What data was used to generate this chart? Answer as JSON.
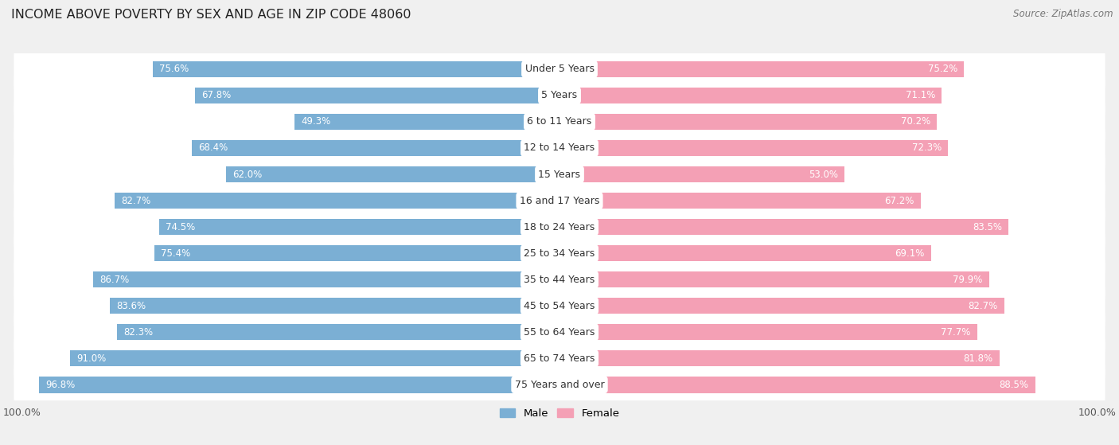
{
  "title": "INCOME ABOVE POVERTY BY SEX AND AGE IN ZIP CODE 48060",
  "source": "Source: ZipAtlas.com",
  "categories": [
    "Under 5 Years",
    "5 Years",
    "6 to 11 Years",
    "12 to 14 Years",
    "15 Years",
    "16 and 17 Years",
    "18 to 24 Years",
    "25 to 34 Years",
    "35 to 44 Years",
    "45 to 54 Years",
    "55 to 64 Years",
    "65 to 74 Years",
    "75 Years and over"
  ],
  "male": [
    75.6,
    67.8,
    49.3,
    68.4,
    62.0,
    82.7,
    74.5,
    75.4,
    86.7,
    83.6,
    82.3,
    91.0,
    96.8
  ],
  "female": [
    75.2,
    71.1,
    70.2,
    72.3,
    53.0,
    67.2,
    83.5,
    69.1,
    79.9,
    82.7,
    77.7,
    81.8,
    88.5
  ],
  "male_color": "#7bafd4",
  "female_color": "#f4a0b5",
  "bg_color": "#f0f0f0",
  "bar_bg_color": "#ffffff",
  "title_fontsize": 11.5,
  "label_fontsize": 9,
  "value_fontsize": 8.5,
  "source_fontsize": 8.5,
  "xlim": 100.0
}
